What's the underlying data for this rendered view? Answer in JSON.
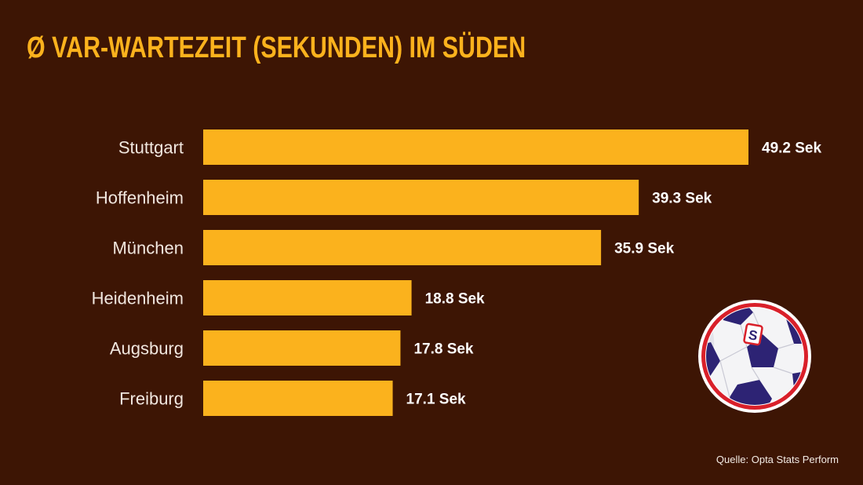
{
  "colors": {
    "background": "#3d1504",
    "bar": "#fbb21d",
    "title": "#fbb21d",
    "value_text": "#ffffff",
    "category_text": "#f1e7df"
  },
  "source": "Quelle: Opta Stats Perform",
  "logo": {
    "icon": "soccer-ball-icon",
    "badge_letter": "S"
  },
  "chart_data": {
    "type": "bar",
    "orientation": "horizontal",
    "title": "Ø VAR-WARTEZEIT (SEKUNDEN) IM SÜDEN",
    "xlabel": "",
    "ylabel": "",
    "grid": false,
    "legend": "none",
    "categories": [
      "Stuttgart",
      "Hoffenheim",
      "München",
      "Heidenheim",
      "Augsburg",
      "Freiburg"
    ],
    "values": [
      49.2,
      39.3,
      35.9,
      18.8,
      17.8,
      17.1
    ],
    "value_labels": [
      "49.2 Sek",
      "39.3 Sek",
      "35.9 Sek",
      "18.8 Sek",
      "17.8 Sek",
      "17.1 Sek"
    ]
  }
}
